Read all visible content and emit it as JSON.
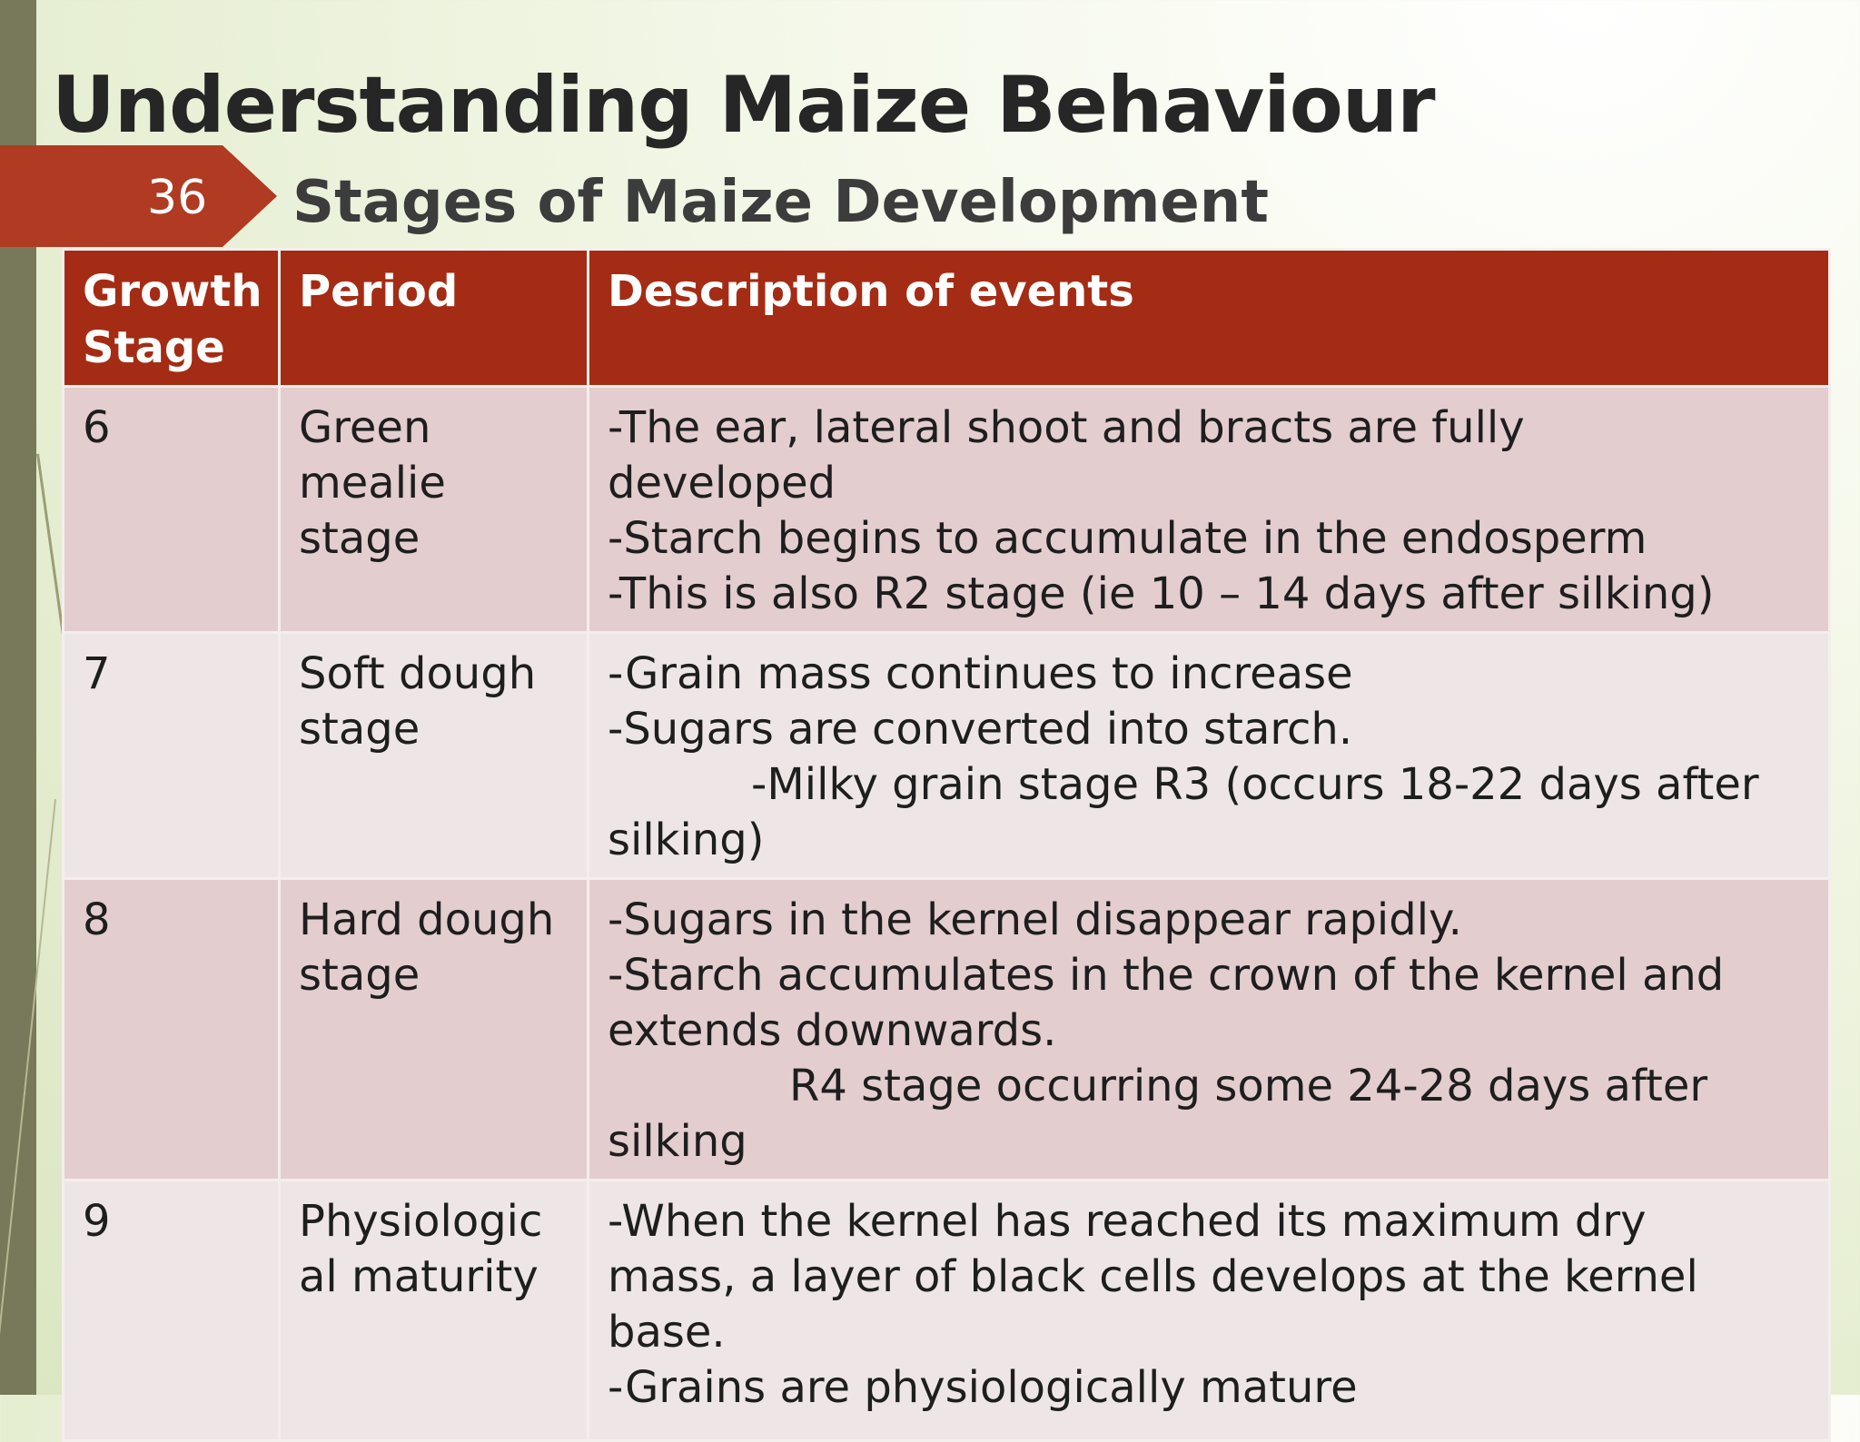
{
  "slide": {
    "title": "Understanding Maize Behaviour",
    "number": "36",
    "subtitle": "Stages of Maize Development"
  },
  "table": {
    "headers": {
      "growth_stage": "Growth Stage",
      "period": "Period",
      "description": "Description of events"
    },
    "rows": [
      {
        "stage": "6",
        "period": "Green mealie stage",
        "lines": [
          "-The ear, lateral shoot and bracts are fully",
          "developed",
          "-Starch begins to accumulate in the endosperm",
          "-This is also R2 stage (ie 10 – 14 days after silking)"
        ]
      },
      {
        "stage": "7",
        "period": "Soft dough stage",
        "lines": [
          "-Grain mass continues to increase",
          "-Sugars are converted into starch.",
          "-Milky grain stage R3 (occurs 18-22 days after",
          "silking)"
        ]
      },
      {
        "stage": "8",
        "period": "Hard dough stage",
        "lines": [
          "-Sugars in the kernel disappear rapidly.",
          "-Starch accumulates in the crown of the kernel and",
          "extends downwards.",
          "R4 stage occurring some 24-28 days after",
          "silking"
        ]
      },
      {
        "stage": "9",
        "period": "Physiologic al maturity",
        "lines": [
          "-When the kernel has reached its maximum dry",
          "mass, a layer of black cells develops at the kernel",
          "base.",
          "-Grains are physiologically mature"
        ]
      }
    ]
  }
}
